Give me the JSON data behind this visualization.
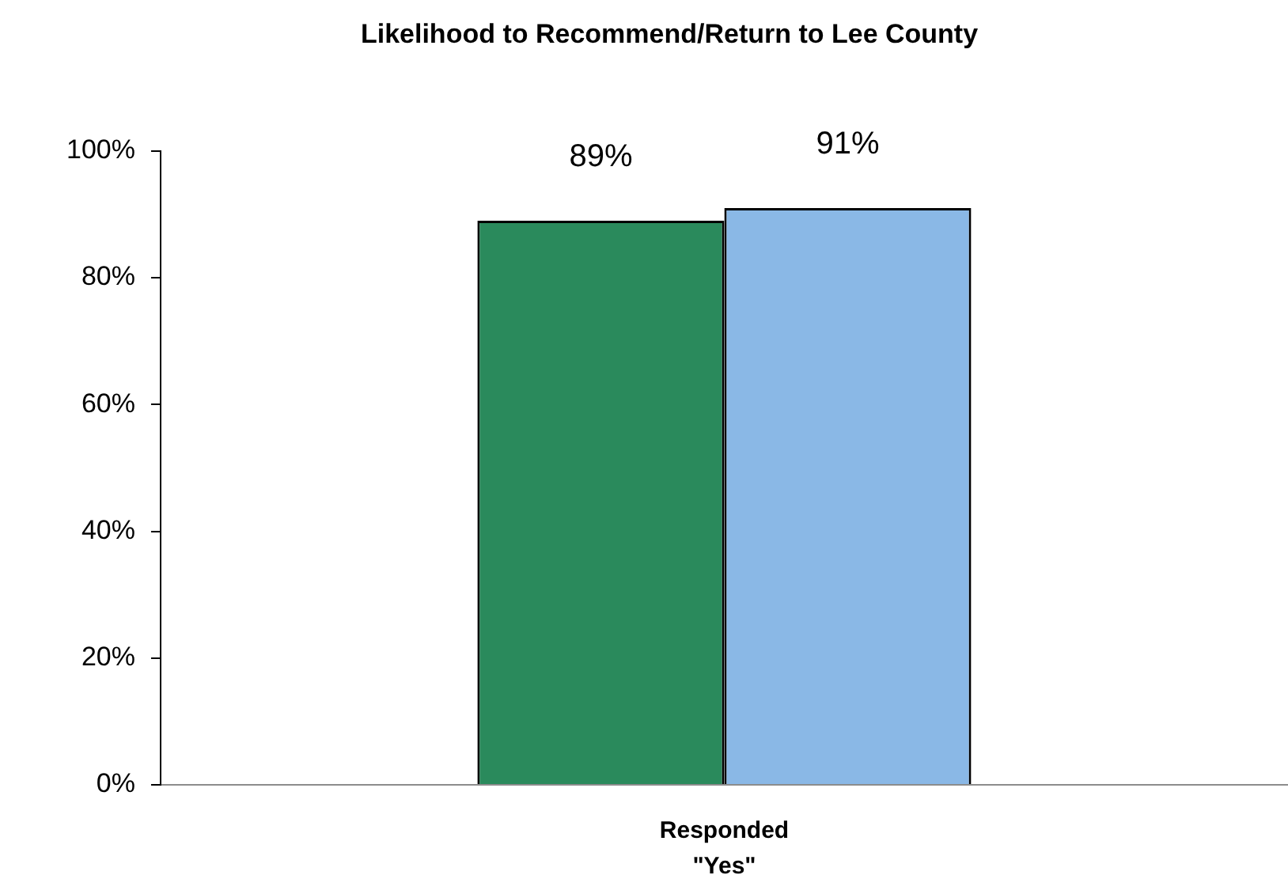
{
  "chart_data": {
    "type": "bar",
    "title": "Likelihood to Recommend/Return to Lee County",
    "categories": [
      "Responded \"Yes\""
    ],
    "series": [
      {
        "color": "#2a8a5c",
        "values": [
          89
        ],
        "value_labels": [
          "89%"
        ]
      },
      {
        "color": "#8ab8e6",
        "values": [
          91
        ],
        "value_labels": [
          "91%"
        ]
      }
    ],
    "ylim": [
      0,
      100
    ],
    "yticks": [
      {
        "value": 0,
        "label": "0%"
      },
      {
        "value": 20,
        "label": "20%"
      },
      {
        "value": 40,
        "label": "40%"
      },
      {
        "value": 60,
        "label": "60%"
      },
      {
        "value": 80,
        "label": "80%"
      },
      {
        "value": 100,
        "label": "100%"
      }
    ],
    "grid": false,
    "legend": false
  }
}
